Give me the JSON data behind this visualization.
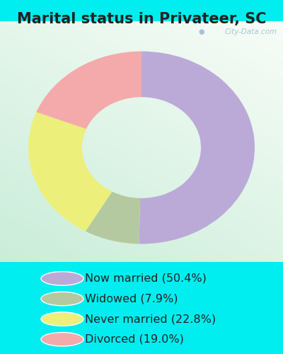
{
  "title": "Marital status in Privateer, SC",
  "categories": [
    "Now married",
    "Widowed",
    "Never married",
    "Divorced"
  ],
  "values": [
    50.4,
    7.9,
    22.8,
    19.0
  ],
  "colors": [
    "#bbaad8",
    "#b5c9a0",
    "#ecf07a",
    "#f4aaaa"
  ],
  "legend_labels": [
    "Now married (50.4%)",
    "Widowed (7.9%)",
    "Never married (22.8%)",
    "Divorced (19.0%)"
  ],
  "bg_cyan": "#00eef0",
  "bg_chart_top_right": "#f0f8f8",
  "bg_chart_bottom_left": "#c8e8d0",
  "watermark": "City-Data.com",
  "donut_outer": 0.8,
  "donut_width": 0.38,
  "title_fontsize": 15,
  "legend_fontsize": 11.5
}
